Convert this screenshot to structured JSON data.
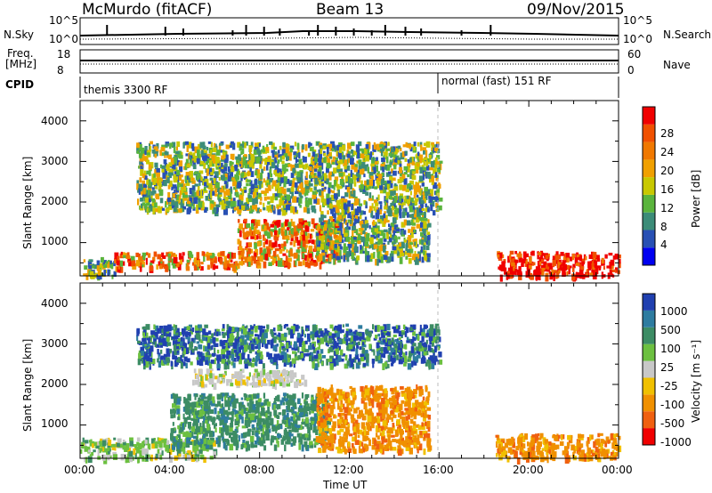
{
  "header": {
    "station": "McMurdo (fitACF)",
    "beam": "Beam 13",
    "date": "09/Nov/2015"
  },
  "top_panels": {
    "nsky_label": "N.Sky",
    "nsearch_label": "N.Search",
    "nsky_ticks": [
      "10^5",
      "10^0"
    ],
    "nsearch_ticks": [
      "10^5",
      "10^0"
    ],
    "freq_label_1": "Freq.",
    "freq_label_2": "[MHz]",
    "freq_ticks": [
      "18",
      "8"
    ],
    "nave_label": "Nave",
    "nave_ticks": [
      "60",
      "0"
    ],
    "cpid_label": "CPID",
    "cpid_segments": [
      {
        "name": "themis 3300 RF",
        "start_hour": 0,
        "end_hour": 16
      },
      {
        "name": "normal (fast) 151 RF",
        "start_hour": 16,
        "end_hour": 24
      }
    ]
  },
  "x_axis": {
    "label": "Time UT",
    "ticks": [
      "00:00",
      "04:00",
      "08:00",
      "12:00",
      "16:00",
      "20:00",
      "00:00"
    ]
  },
  "y_axis": {
    "label": "Slant Range [km]",
    "ticks": [
      "1000",
      "2000",
      "3000",
      "4000"
    ]
  },
  "power_colorbar": {
    "label": "Power [dB]",
    "ticks": [
      "4",
      "8",
      "12",
      "16",
      "20",
      "24",
      "28"
    ],
    "colors": [
      "#0000f0",
      "#2850b4",
      "#3c8c78",
      "#5ab43c",
      "#c8c800",
      "#f0a000",
      "#f07800",
      "#f05000",
      "#f00000"
    ]
  },
  "velocity_colorbar": {
    "label": "Velocity [m s⁻¹]",
    "ticks": [
      "1000",
      "500",
      "100",
      "25",
      "-25",
      "-100",
      "-500",
      "-1000"
    ],
    "colors": [
      "#2040b0",
      "#2e7ca0",
      "#3c8c64",
      "#6cc040",
      "#c8c8c8",
      "#f0c000",
      "#f09000",
      "#f06010",
      "#f00000"
    ]
  },
  "chart_data": [
    {
      "type": "heatmap",
      "title": "Power",
      "xlabel": "Time UT",
      "ylabel": "Slant Range [km]",
      "xlim_hours": [
        0,
        24
      ],
      "ylim_km": [
        180,
        4500
      ],
      "regions": [
        {
          "t0": 0.0,
          "t1": 1.5,
          "r0": 200,
          "r1": 650,
          "level": "medium"
        },
        {
          "t0": 1.5,
          "t1": 7.0,
          "r0": 400,
          "r1": 800,
          "level": "high"
        },
        {
          "t0": 7.0,
          "t1": 11.5,
          "r0": 500,
          "r1": 1600,
          "level": "high"
        },
        {
          "t0": 10.5,
          "t1": 15.5,
          "r0": 600,
          "r1": 1800,
          "level": "medium"
        },
        {
          "t0": 2.5,
          "t1": 16.0,
          "r0": 1800,
          "r1": 3500,
          "level": "medium"
        },
        {
          "t0": 18.5,
          "t1": 24.0,
          "r0": 200,
          "r1": 800,
          "level": "very-high"
        }
      ]
    },
    {
      "type": "heatmap",
      "title": "Velocity",
      "xlabel": "Time UT",
      "ylabel": "Slant Range [km]",
      "xlim_hours": [
        0,
        24
      ],
      "ylim_km": [
        180,
        4500
      ],
      "regions": [
        {
          "t0": 0.0,
          "t1": 6.0,
          "r0": 200,
          "r1": 700,
          "level": "toward-slow"
        },
        {
          "t0": 4.0,
          "t1": 11.0,
          "r0": 500,
          "r1": 1800,
          "level": "toward-medium"
        },
        {
          "t0": 5.0,
          "t1": 10.0,
          "r0": 2000,
          "r1": 2400,
          "level": "near-zero"
        },
        {
          "t0": 10.5,
          "t1": 15.5,
          "r0": 400,
          "r1": 2000,
          "level": "away-medium"
        },
        {
          "t0": 2.5,
          "t1": 16.0,
          "r0": 2500,
          "r1": 3500,
          "level": "toward-fast"
        },
        {
          "t0": 18.5,
          "t1": 24.0,
          "r0": 200,
          "r1": 800,
          "level": "away-medium"
        }
      ]
    }
  ]
}
